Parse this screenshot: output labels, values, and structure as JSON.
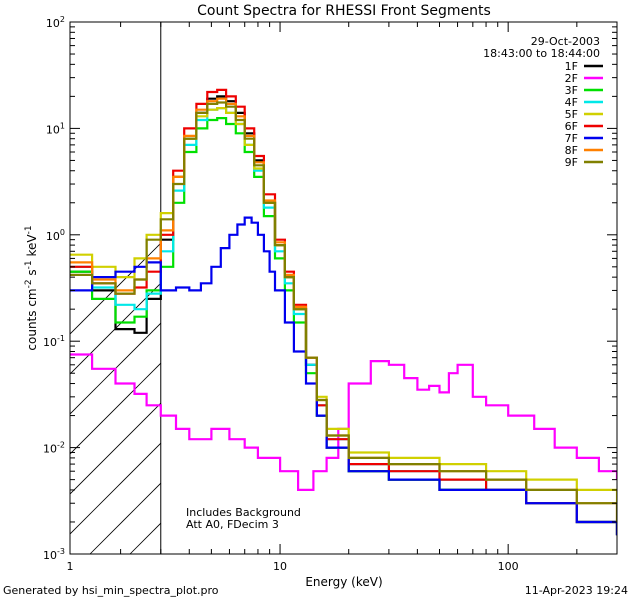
{
  "chart_data": {
    "type": "line",
    "title": "Count Spectra for RHESSI Front Segments",
    "xlabel": "Energy (keV)",
    "ylabel_main": "counts cm",
    "ylabel_sup1": "-2",
    "ylabel_mid1": " s",
    "ylabel_sup2": "-1",
    "ylabel_mid2": " keV",
    "ylabel_sup3": "-1",
    "xscale": "log",
    "yscale": "log",
    "xlim": [
      1.2,
      300
    ],
    "ylim": [
      0.001,
      100
    ],
    "x_ticks": [
      {
        "value": 1,
        "label": "1"
      },
      {
        "value": 10,
        "label": "10"
      },
      {
        "value": 100,
        "label": "100"
      }
    ],
    "y_ticks": [
      {
        "value": 0.001,
        "base": "10",
        "exp": "-3"
      },
      {
        "value": 0.01,
        "base": "10",
        "exp": "-2"
      },
      {
        "value": 0.1,
        "base": "10",
        "exp": "-1"
      },
      {
        "value": 1,
        "base": "10",
        "exp": "0"
      },
      {
        "value": 10,
        "base": "10",
        "exp": "1"
      },
      {
        "value": 100,
        "base": "10",
        "exp": "2"
      }
    ],
    "hatched_region_xmax": 3,
    "date": "29-Oct-2003",
    "time_range": "18:43:00 to 18:44:00",
    "annotations": [
      "Includes Background",
      "Att A0, FDecim 3"
    ],
    "series": [
      {
        "name": "1F",
        "color": "#000000",
        "x": [
          1.2,
          1.5,
          1.9,
          2.3,
          2.6,
          3.0,
          3.4,
          3.8,
          4.3,
          4.8,
          5.3,
          5.8,
          6.4,
          7.0,
          7.7,
          8.5,
          9.5,
          10.5,
          11.5,
          13,
          14.5,
          16,
          20,
          30,
          50,
          80,
          120,
          200,
          300
        ],
        "y": [
          0.45,
          0.3,
          0.13,
          0.12,
          0.25,
          0.9,
          3.5,
          8,
          14,
          19,
          20,
          18,
          14,
          9,
          5,
          2,
          0.8,
          0.4,
          0.2,
          0.06,
          0.02,
          0.01,
          0.006,
          0.005,
          0.004,
          0.004,
          0.003,
          0.002,
          0.0015
        ]
      },
      {
        "name": "2F",
        "color": "#ff00ff",
        "x": [
          1.2,
          1.5,
          1.9,
          2.3,
          2.6,
          3.0,
          3.5,
          4.0,
          5.0,
          6.0,
          7.0,
          8.0,
          10,
          12,
          14,
          16,
          18,
          20,
          25,
          30,
          35,
          40,
          45,
          50,
          55,
          60,
          70,
          80,
          100,
          130,
          160,
          200,
          250,
          300
        ],
        "y": [
          0.075,
          0.055,
          0.04,
          0.032,
          0.025,
          0.02,
          0.015,
          0.012,
          0.015,
          0.012,
          0.01,
          0.008,
          0.006,
          0.004,
          0.006,
          0.008,
          0.015,
          0.04,
          0.065,
          0.06,
          0.045,
          0.035,
          0.038,
          0.033,
          0.05,
          0.06,
          0.03,
          0.025,
          0.02,
          0.015,
          0.01,
          0.008,
          0.006,
          0.005
        ]
      },
      {
        "name": "3F",
        "color": "#00e000",
        "x": [
          1.2,
          1.5,
          1.9,
          2.3,
          2.6,
          3.0,
          3.4,
          3.8,
          4.3,
          4.8,
          5.3,
          5.8,
          6.4,
          7.0,
          7.7,
          8.5,
          9.5,
          10.5,
          11.5,
          13,
          14.5,
          16,
          20,
          30,
          50,
          80,
          120,
          200,
          300
        ],
        "y": [
          0.45,
          0.25,
          0.15,
          0.17,
          0.3,
          0.5,
          2.0,
          6,
          10,
          12,
          12.5,
          11,
          9,
          6,
          3.5,
          1.5,
          0.6,
          0.3,
          0.15,
          0.05,
          0.02,
          0.01,
          0.006,
          0.005,
          0.004,
          0.004,
          0.003,
          0.002,
          0.0015
        ]
      },
      {
        "name": "4F",
        "color": "#00e8e8",
        "x": [
          1.2,
          1.5,
          1.9,
          2.3,
          2.6,
          3.0,
          3.4,
          3.8,
          4.3,
          4.8,
          5.3,
          5.8,
          6.4,
          7.0,
          7.7,
          8.5,
          9.5,
          10.5,
          11.5,
          13,
          14.5,
          16,
          20,
          30,
          50,
          80,
          120,
          200,
          300
        ],
        "y": [
          0.5,
          0.32,
          0.22,
          0.2,
          0.28,
          0.7,
          2.6,
          7,
          12,
          15,
          15.5,
          14,
          11,
          7,
          4,
          1.8,
          0.7,
          0.35,
          0.18,
          0.06,
          0.025,
          0.012,
          0.007,
          0.006,
          0.005,
          0.004,
          0.003,
          0.002,
          0.0015
        ]
      },
      {
        "name": "5F",
        "color": "#d0d000",
        "x": [
          1.2,
          1.5,
          1.9,
          2.3,
          2.6,
          3.0,
          3.4,
          3.8,
          4.3,
          4.8,
          5.3,
          5.8,
          6.4,
          7.0,
          7.7,
          8.5,
          9.5,
          10.5,
          11.5,
          13,
          14.5,
          16,
          20,
          30,
          50,
          80,
          120,
          200,
          300
        ],
        "y": [
          0.65,
          0.5,
          0.4,
          0.6,
          1.0,
          1.6,
          3.5,
          8,
          13,
          15,
          15.5,
          14,
          11,
          7,
          4.2,
          2,
          0.8,
          0.4,
          0.2,
          0.07,
          0.03,
          0.015,
          0.009,
          0.008,
          0.007,
          0.006,
          0.005,
          0.004,
          0.003
        ]
      },
      {
        "name": "6F",
        "color": "#ee0000",
        "x": [
          1.2,
          1.5,
          1.9,
          2.3,
          2.6,
          3.0,
          3.4,
          3.8,
          4.3,
          4.8,
          5.3,
          5.8,
          6.4,
          7.0,
          7.7,
          8.5,
          9.5,
          10.5,
          11.5,
          13,
          14.5,
          16,
          20,
          30,
          50,
          80,
          120,
          200,
          300
        ],
        "y": [
          0.5,
          0.35,
          0.28,
          0.32,
          0.45,
          1.0,
          4.0,
          10,
          17,
          22,
          23,
          20,
          16,
          10,
          5.5,
          2.4,
          0.9,
          0.45,
          0.22,
          0.07,
          0.025,
          0.012,
          0.007,
          0.006,
          0.005,
          0.004,
          0.003,
          0.002,
          0.0015
        ]
      },
      {
        "name": "7F",
        "color": "#0000ee",
        "x": [
          1.2,
          1.5,
          1.9,
          2.3,
          2.6,
          3.0,
          3.5,
          4.0,
          4.5,
          5.0,
          5.5,
          6.0,
          6.5,
          7.0,
          7.5,
          8.0,
          8.5,
          9.0,
          9.5,
          10.5,
          11.5,
          13,
          14.5,
          16,
          20,
          30,
          50,
          80,
          120,
          200,
          300
        ],
        "y": [
          0.3,
          0.4,
          0.45,
          0.5,
          0.55,
          0.3,
          0.32,
          0.3,
          0.35,
          0.5,
          0.75,
          1.0,
          1.25,
          1.45,
          1.3,
          1.0,
          0.7,
          0.45,
          0.3,
          0.15,
          0.08,
          0.04,
          0.02,
          0.01,
          0.006,
          0.005,
          0.004,
          0.004,
          0.003,
          0.002,
          0.0015
        ]
      },
      {
        "name": "8F",
        "color": "#ff8000",
        "x": [
          1.2,
          1.5,
          1.9,
          2.3,
          2.6,
          3.0,
          3.4,
          3.8,
          4.3,
          4.8,
          5.3,
          5.8,
          6.4,
          7.0,
          7.7,
          8.5,
          9.5,
          10.5,
          11.5,
          13,
          14.5,
          16,
          20,
          30,
          50,
          80,
          120,
          200,
          300
        ],
        "y": [
          0.55,
          0.38,
          0.3,
          0.38,
          0.6,
          1.1,
          3.5,
          8.5,
          15,
          18,
          19,
          17,
          13,
          8.5,
          4.8,
          2.1,
          0.85,
          0.42,
          0.21,
          0.07,
          0.028,
          0.013,
          0.008,
          0.007,
          0.006,
          0.005,
          0.004,
          0.003,
          0.002
        ]
      },
      {
        "name": "9F",
        "color": "#808000",
        "x": [
          1.2,
          1.5,
          1.9,
          2.3,
          2.6,
          3.0,
          3.4,
          3.8,
          4.3,
          4.8,
          5.3,
          5.8,
          6.4,
          7.0,
          7.7,
          8.5,
          9.5,
          10.5,
          11.5,
          13,
          14.5,
          16,
          20,
          30,
          50,
          80,
          120,
          200,
          300
        ],
        "y": [
          0.42,
          0.35,
          0.28,
          0.38,
          0.9,
          1.4,
          3.0,
          8,
          14,
          17,
          17.5,
          16,
          12,
          8,
          4.5,
          2,
          0.8,
          0.4,
          0.2,
          0.07,
          0.028,
          0.013,
          0.008,
          0.007,
          0.006,
          0.005,
          0.004,
          0.003,
          0.002
        ]
      }
    ]
  },
  "footer": {
    "generator": "Generated by hsi_min_spectra_plot.pro",
    "timestamp": "11-Apr-2023 19:24"
  }
}
